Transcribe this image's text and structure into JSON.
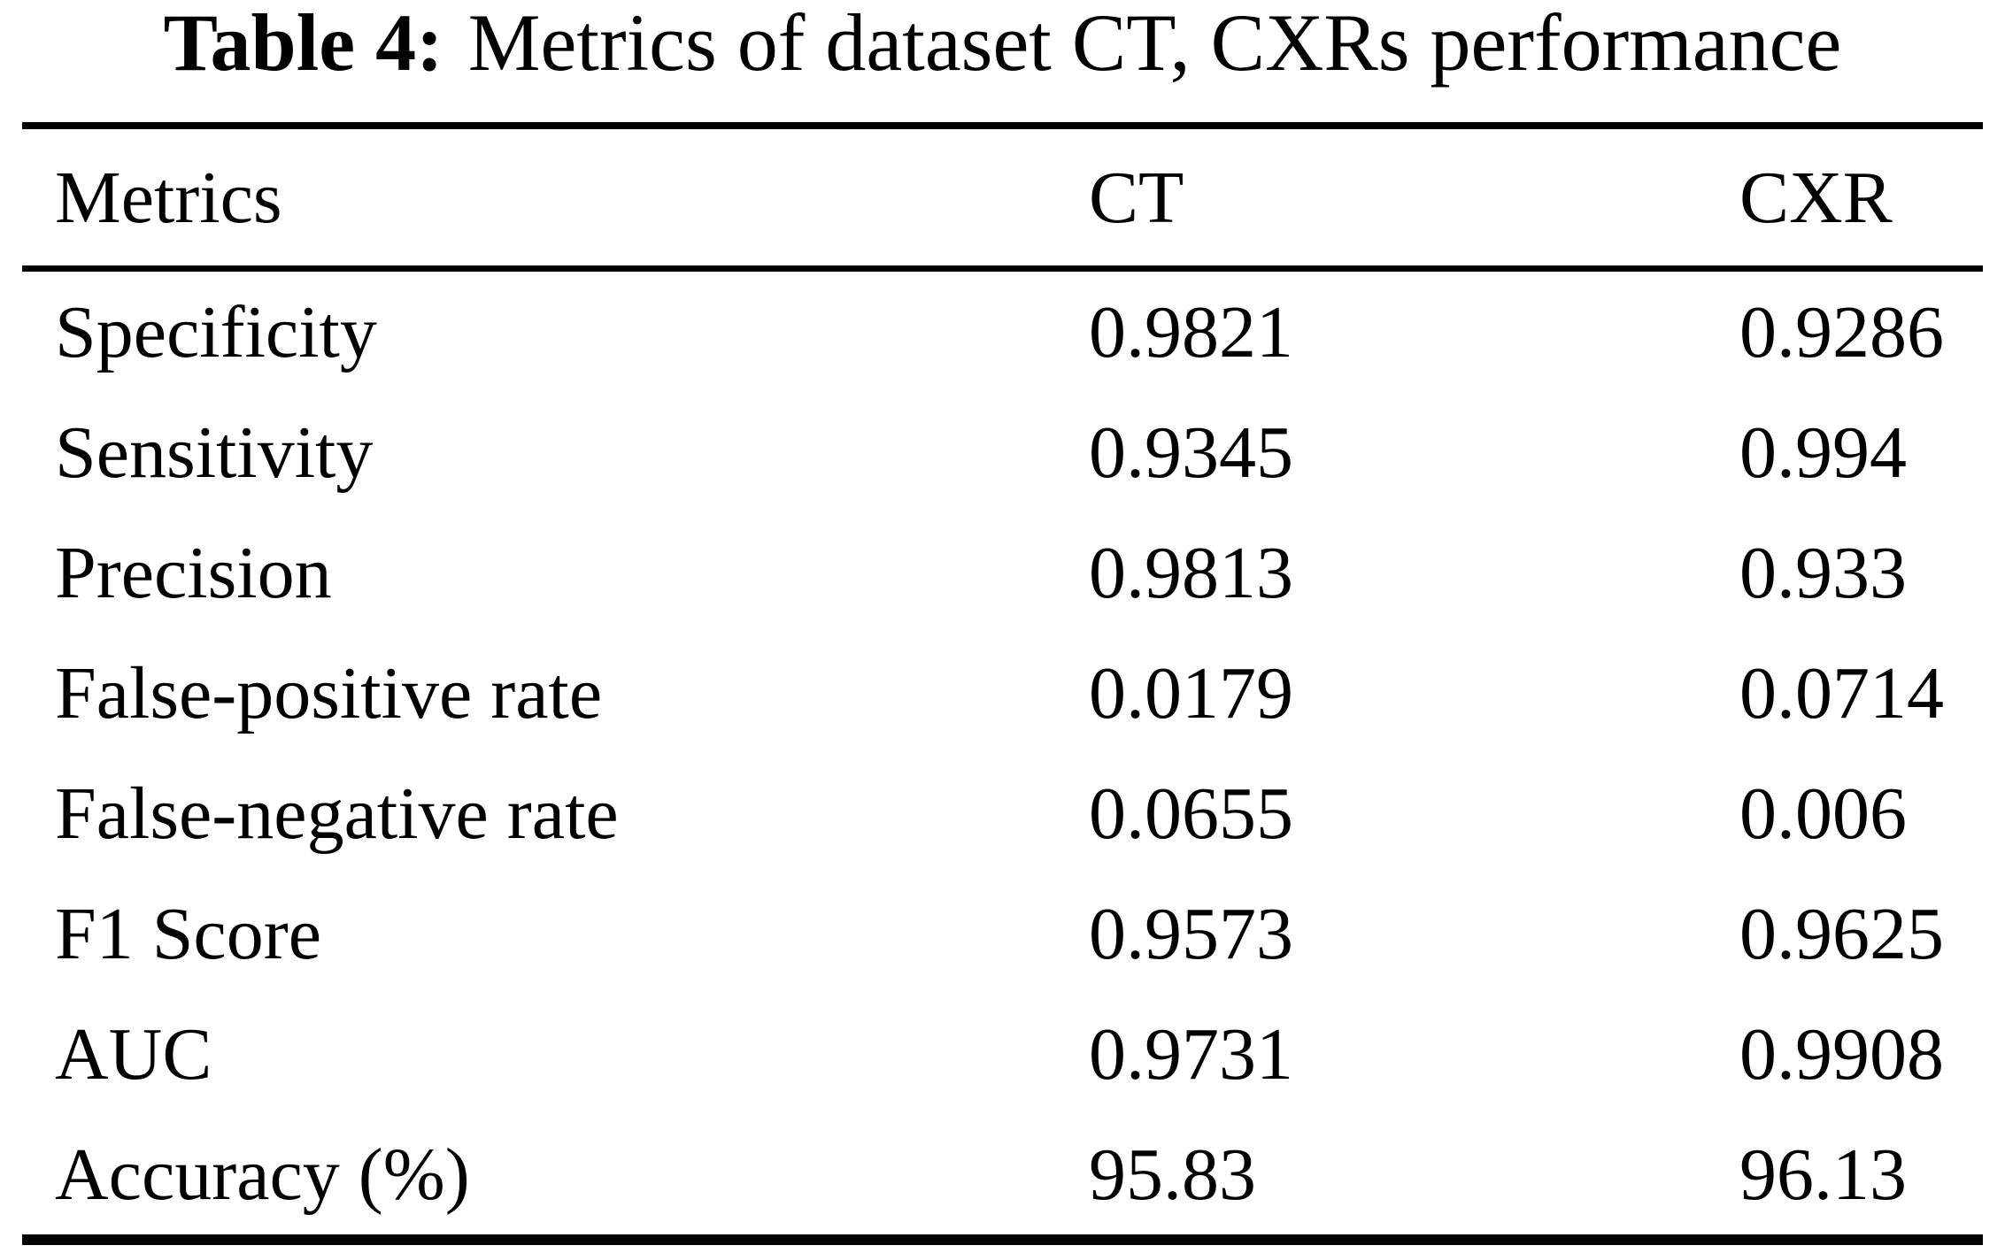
{
  "caption": {
    "label": "Table 4:",
    "text": "Metrics of dataset CT, CXRs performance"
  },
  "table": {
    "columns": [
      "Metrics",
      "CT",
      "CXR"
    ],
    "rows": [
      {
        "metric": "Specificity",
        "ct": "0.9821",
        "cxr": "0.9286"
      },
      {
        "metric": "Sensitivity",
        "ct": "0.9345",
        "cxr": "0.994"
      },
      {
        "metric": "Precision",
        "ct": "0.9813",
        "cxr": "0.933"
      },
      {
        "metric": "False-positive rate",
        "ct": "0.0179",
        "cxr": "0.0714"
      },
      {
        "metric": "False-negative rate",
        "ct": "0.0655",
        "cxr": "0.006"
      },
      {
        "metric": "F1 Score",
        "ct": "0.9573",
        "cxr": "0.9625"
      },
      {
        "metric": "AUC",
        "ct": "0.9731",
        "cxr": "0.9908"
      },
      {
        "metric": "Accuracy (%)",
        "ct": "95.83",
        "cxr": "96.13"
      }
    ]
  },
  "colors": {
    "text": "#000000",
    "background": "#ffffff",
    "rule": "#000000"
  }
}
